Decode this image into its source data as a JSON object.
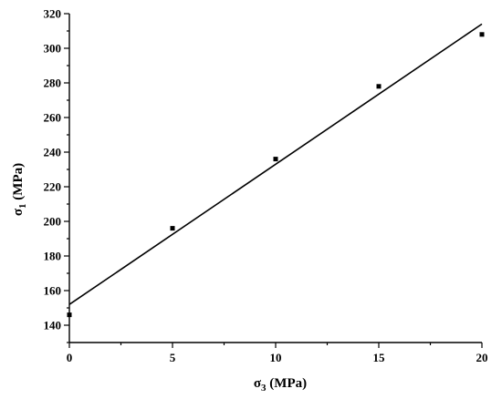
{
  "chart_data": {
    "type": "scatter",
    "title": "",
    "xlabel": {
      "main": "σ",
      "sub": "3",
      "unit": " (MPa)"
    },
    "ylabel": {
      "main": "σ",
      "sub": "1",
      "unit": " (MPa)"
    },
    "xlim": [
      0,
      20
    ],
    "ylim": [
      130,
      320
    ],
    "x_ticks": [
      0,
      5,
      10,
      15,
      20
    ],
    "y_ticks": [
      140,
      160,
      180,
      200,
      220,
      240,
      260,
      280,
      300,
      320
    ],
    "grid": false,
    "legend": "none",
    "series": [
      {
        "marker": "square",
        "color": "#000000",
        "x": [
          0,
          5,
          10,
          15,
          20
        ],
        "y": [
          146,
          196,
          236,
          278,
          308
        ]
      }
    ],
    "fit_line": {
      "color": "#000000",
      "x": [
        0,
        20
      ],
      "y": [
        152,
        314
      ]
    }
  }
}
